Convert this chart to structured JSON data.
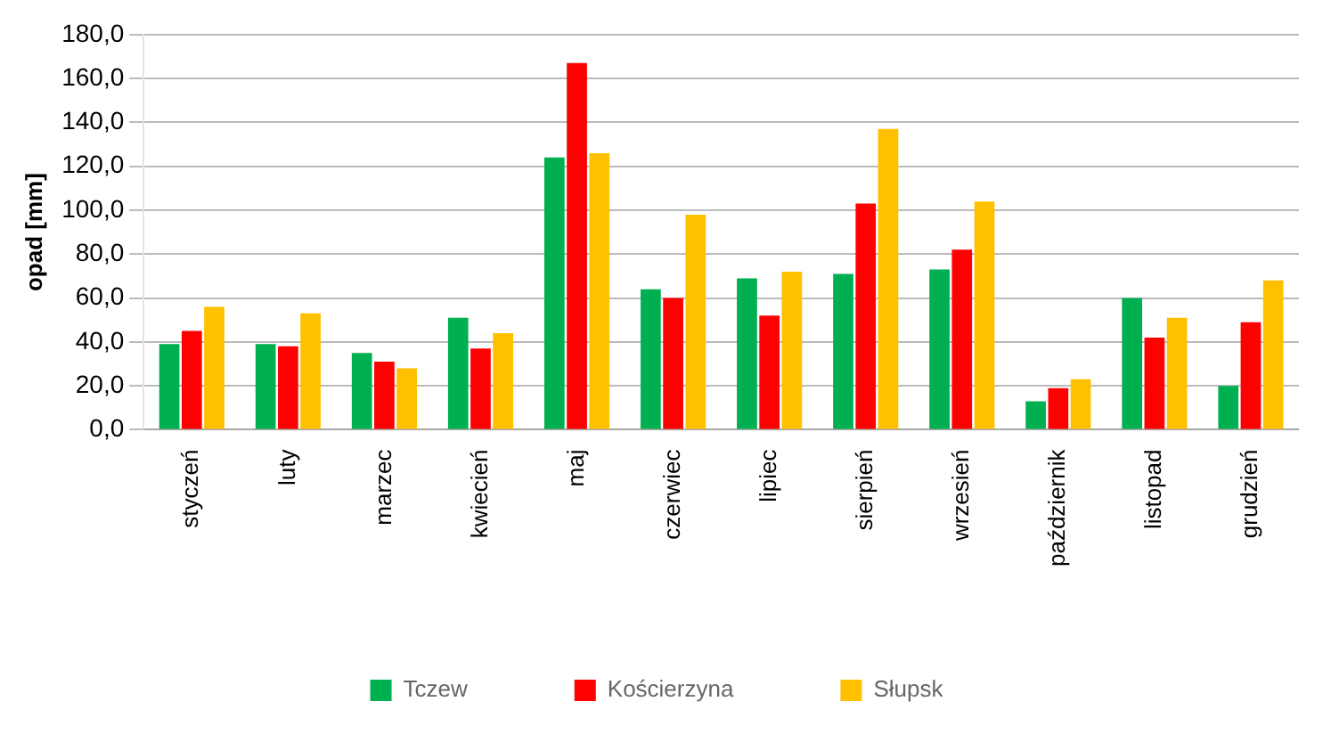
{
  "chart_data": {
    "type": "bar",
    "ylabel": "opad [mm]",
    "categories": [
      "styczeń",
      "luty",
      "marzec",
      "kwiecień",
      "maj",
      "czerwiec",
      "lipiec",
      "sierpień",
      "wrzesień",
      "październik",
      "listopad",
      "grudzień"
    ],
    "series": [
      {
        "name": "Tczew",
        "color": "#00b050",
        "values": [
          39,
          39,
          35,
          51,
          124,
          64,
          69,
          71,
          73,
          13,
          60,
          20
        ]
      },
      {
        "name": "Kościerzyna",
        "color": "#ff0000",
        "values": [
          45,
          38,
          31,
          37,
          167,
          60,
          52,
          103,
          82,
          19,
          42,
          49
        ]
      },
      {
        "name": "Słupsk",
        "color": "#ffc000",
        "values": [
          56,
          53,
          28,
          44,
          126,
          98,
          72,
          137,
          104,
          23,
          51,
          68
        ]
      }
    ],
    "ylim": [
      0,
      180
    ],
    "yticks": [
      {
        "value": 0,
        "label": "0,0"
      },
      {
        "value": 20,
        "label": "20,0"
      },
      {
        "value": 40,
        "label": "40,0"
      },
      {
        "value": 60,
        "label": "60,0"
      },
      {
        "value": 80,
        "label": "80,0"
      },
      {
        "value": 100,
        "label": "100,0"
      },
      {
        "value": 120,
        "label": "120,0"
      },
      {
        "value": 140,
        "label": "140,0"
      },
      {
        "value": 160,
        "label": "160,0"
      },
      {
        "value": 180,
        "label": "180,0"
      }
    ],
    "grid": "y",
    "legend": "bottom"
  }
}
